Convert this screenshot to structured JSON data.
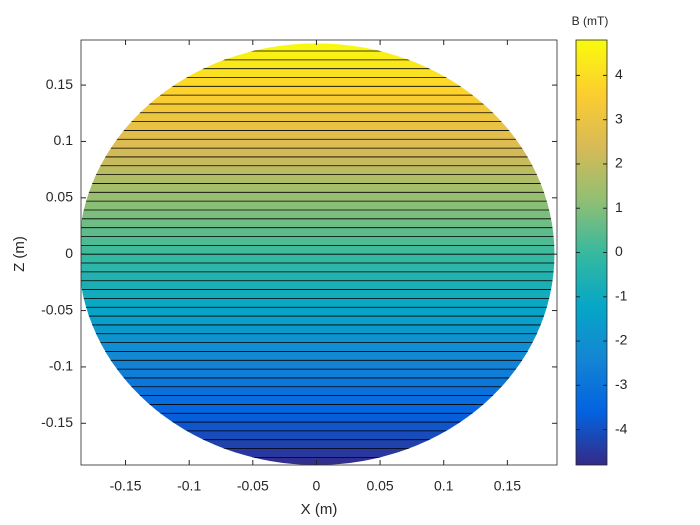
{
  "chart_data": {
    "type": "contour",
    "xlabel": "X (m)",
    "ylabel": "Z (m)",
    "colorbar_label": "B (mT)",
    "xlim": [
      -0.185,
      0.189
    ],
    "ylim": [
      -0.187,
      0.19
    ],
    "xticks": [
      -0.15,
      -0.1,
      -0.05,
      0,
      0.05,
      0.1,
      0.15
    ],
    "yticks": [
      -0.15,
      -0.1,
      -0.05,
      0,
      0.05,
      0.1,
      0.15
    ],
    "boundary_radius": 0.187,
    "z": [
      -0.19,
      -0.1,
      0,
      0.1,
      0.19
    ],
    "values": [
      -4.85,
      -2.55,
      0,
      2.55,
      4.85
    ],
    "levels": [
      -4.8,
      -4.6,
      -4.4,
      -4.2,
      -4.0,
      -3.8,
      -3.6,
      -3.4,
      -3.2,
      -3.0,
      -2.8,
      -2.6,
      -2.4,
      -2.2,
      -2.0,
      -1.8,
      -1.6,
      -1.4,
      -1.2,
      -1.0,
      -0.8,
      -0.6,
      -0.4,
      -0.2,
      0,
      0.2,
      0.4,
      0.6,
      0.8,
      1.0,
      1.2,
      1.4,
      1.6,
      1.8,
      2.0,
      2.2,
      2.4,
      2.6,
      2.8,
      3.0,
      3.2,
      3.4,
      3.6,
      3.8,
      4.0,
      4.2,
      4.4,
      4.6,
      4.8
    ],
    "clim": [
      -4.8,
      4.8
    ],
    "cticks": [
      -4,
      -3,
      -2,
      -1,
      0,
      1,
      2,
      3,
      4
    ],
    "colormap": [
      "#352a87",
      "#0363e1",
      "#1485d4",
      "#06a7c6",
      "#38b99e",
      "#92bf73",
      "#d9ba56",
      "#fcce2e",
      "#f9fb0e"
    ],
    "line_color": "#000000"
  }
}
